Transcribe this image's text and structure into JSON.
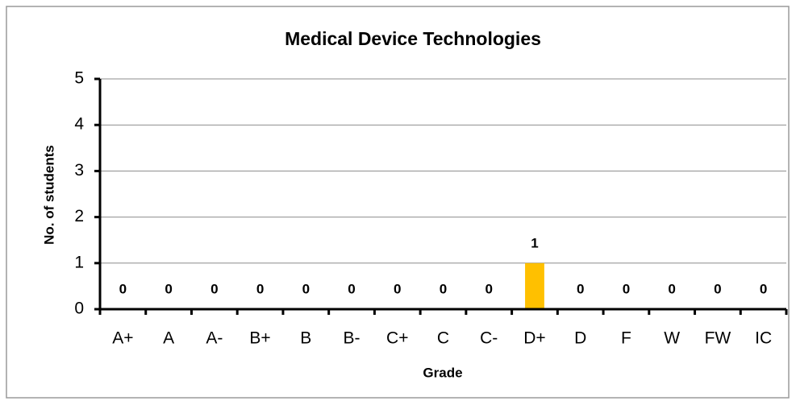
{
  "chart_data": {
    "type": "bar",
    "title": "Medical Device Technologies",
    "categories": [
      "A+",
      "A",
      "A-",
      "B+",
      "B",
      "B-",
      "C+",
      "C",
      "C-",
      "D+",
      "D",
      "F",
      "W",
      "FW",
      "IC"
    ],
    "values": [
      0,
      0,
      0,
      0,
      0,
      0,
      0,
      0,
      0,
      1,
      0,
      0,
      0,
      0,
      0
    ],
    "color": "#ffc000",
    "x_label": "Grade",
    "y_label": "No. of students",
    "ylim": [
      0,
      5
    ],
    "yticks": [
      0,
      1,
      2,
      3,
      4,
      5
    ],
    "grid": true
  }
}
